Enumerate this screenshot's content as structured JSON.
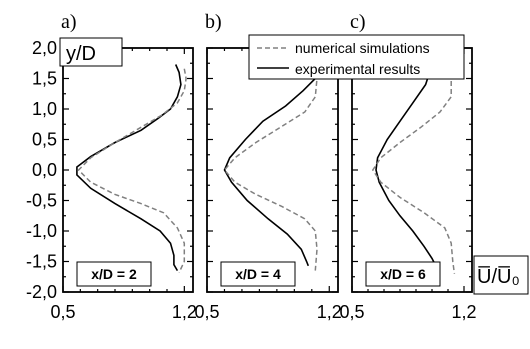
{
  "chart_data": {
    "type": "line",
    "y_axis": {
      "title": "y/D",
      "ylim": [
        -2.0,
        2.0
      ],
      "tick_values": [
        2.0,
        1.5,
        1.0,
        0.5,
        0.0,
        -0.5,
        -1.0,
        -1.5,
        -2.0
      ],
      "tick_labels": [
        "2,0",
        "1,5",
        "1,0",
        "0,5",
        "0,0",
        "-0,5",
        "-1,0",
        "-1,5",
        "-2,0"
      ]
    },
    "x_axis": {
      "title": "U̅/U̅₀",
      "xlim": [
        0.5,
        1.25
      ],
      "tick_values": [
        0.5,
        1.2
      ],
      "tick_labels": [
        "0,5",
        "1,2"
      ]
    },
    "legend": {
      "placement": "top",
      "entries": [
        {
          "name": "numerical simulations",
          "style": "dashed",
          "color": "#808080"
        },
        {
          "name": "experimental results",
          "style": "solid",
          "color": "#000000"
        }
      ]
    },
    "panels": [
      {
        "letter": "a)",
        "annotation": "x/D = 2",
        "series": [
          {
            "name": "experimental results",
            "points": [
              [
                1.15,
                1.73
              ],
              [
                1.17,
                1.6
              ],
              [
                1.18,
                1.4
              ],
              [
                1.16,
                1.2
              ],
              [
                1.12,
                1.0
              ],
              [
                1.05,
                0.85
              ],
              [
                0.95,
                0.65
              ],
              [
                0.8,
                0.45
              ],
              [
                0.66,
                0.22
              ],
              [
                0.58,
                0.05
              ],
              [
                0.58,
                -0.08
              ],
              [
                0.66,
                -0.3
              ],
              [
                0.8,
                -0.55
              ],
              [
                0.95,
                -0.8
              ],
              [
                1.06,
                -1.0
              ],
              [
                1.12,
                -1.2
              ],
              [
                1.14,
                -1.4
              ],
              [
                1.14,
                -1.55
              ],
              [
                1.16,
                -1.65
              ]
            ]
          },
          {
            "name": "numerical simulations",
            "points": [
              [
                1.2,
                1.66
              ],
              [
                1.21,
                1.5
              ],
              [
                1.2,
                1.3
              ],
              [
                1.16,
                1.1
              ],
              [
                1.07,
                0.9
              ],
              [
                0.95,
                0.7
              ],
              [
                0.8,
                0.45
              ],
              [
                0.66,
                0.2
              ],
              [
                0.59,
                0.0
              ],
              [
                0.66,
                -0.2
              ],
              [
                0.8,
                -0.4
              ],
              [
                0.95,
                -0.55
              ],
              [
                1.08,
                -0.7
              ],
              [
                1.16,
                -0.95
              ],
              [
                1.2,
                -1.2
              ],
              [
                1.2,
                -1.5
              ],
              [
                1.17,
                -1.68
              ]
            ]
          }
        ]
      },
      {
        "letter": "b)",
        "annotation": "x/D = 4",
        "series": [
          {
            "name": "experimental results",
            "points": [
              [
                1.1,
                1.72
              ],
              [
                1.12,
                1.5
              ],
              [
                1.05,
                1.3
              ],
              [
                0.95,
                1.05
              ],
              [
                0.82,
                0.8
              ],
              [
                0.72,
                0.5
              ],
              [
                0.63,
                0.2
              ],
              [
                0.6,
                0.0
              ],
              [
                0.64,
                -0.2
              ],
              [
                0.73,
                -0.5
              ],
              [
                0.85,
                -0.8
              ],
              [
                0.96,
                -1.05
              ],
              [
                1.04,
                -1.3
              ],
              [
                1.07,
                -1.5
              ],
              [
                1.08,
                -1.57
              ]
            ]
          },
          {
            "name": "numerical simulations",
            "points": [
              [
                1.12,
                1.72
              ],
              [
                1.13,
                1.5
              ],
              [
                1.12,
                1.2
              ],
              [
                1.06,
                0.95
              ],
              [
                0.92,
                0.7
              ],
              [
                0.78,
                0.45
              ],
              [
                0.66,
                0.2
              ],
              [
                0.6,
                0.0
              ],
              [
                0.66,
                -0.2
              ],
              [
                0.78,
                -0.4
              ],
              [
                0.93,
                -0.6
              ],
              [
                1.06,
                -0.8
              ],
              [
                1.12,
                -1.0
              ],
              [
                1.13,
                -1.3
              ],
              [
                1.12,
                -1.65
              ]
            ]
          }
        ]
      },
      {
        "letter": "c)",
        "annotation": "x/D = 6",
        "series": [
          {
            "name": "experimental results",
            "points": [
              [
                1.0,
                1.72
              ],
              [
                0.96,
                1.4
              ],
              [
                0.88,
                1.1
              ],
              [
                0.8,
                0.8
              ],
              [
                0.72,
                0.5
              ],
              [
                0.66,
                0.2
              ],
              [
                0.65,
                0.0
              ],
              [
                0.67,
                -0.2
              ],
              [
                0.73,
                -0.5
              ],
              [
                0.8,
                -0.75
              ],
              [
                0.88,
                -1.0
              ],
              [
                0.95,
                -1.25
              ],
              [
                1.0,
                -1.45
              ],
              [
                1.02,
                -1.55
              ]
            ]
          },
          {
            "name": "numerical simulations",
            "points": [
              [
                1.11,
                1.72
              ],
              [
                1.12,
                1.5
              ],
              [
                1.12,
                1.2
              ],
              [
                1.05,
                0.95
              ],
              [
                0.93,
                0.7
              ],
              [
                0.8,
                0.45
              ],
              [
                0.68,
                0.2
              ],
              [
                0.63,
                0.0
              ],
              [
                0.68,
                -0.2
              ],
              [
                0.8,
                -0.45
              ],
              [
                0.95,
                -0.7
              ],
              [
                1.08,
                -0.95
              ],
              [
                1.12,
                -1.2
              ],
              [
                1.13,
                -1.5
              ],
              [
                1.14,
                -1.7
              ]
            ]
          }
        ]
      }
    ]
  }
}
